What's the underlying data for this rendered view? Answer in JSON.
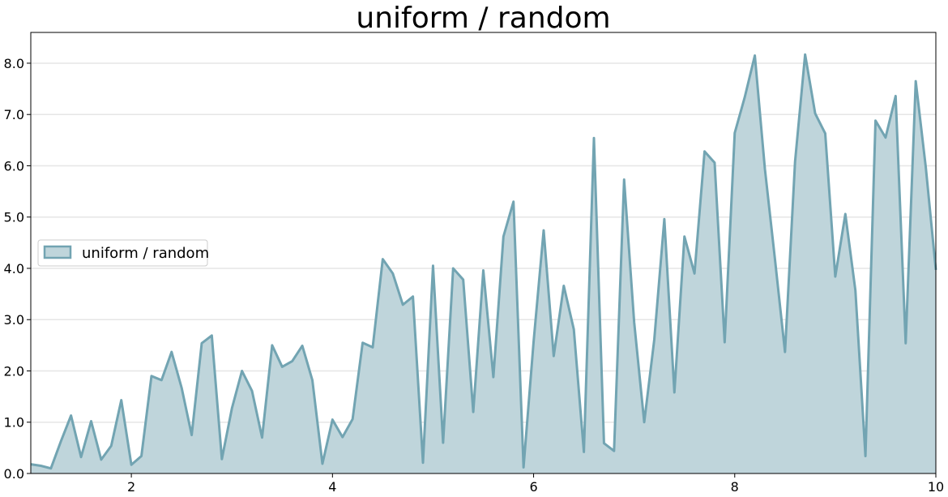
{
  "chart_data": {
    "type": "area",
    "title": "uniform / random",
    "xlabel": "",
    "ylabel": "",
    "xlim": [
      1,
      10
    ],
    "ylim": [
      0,
      8.6
    ],
    "x_ticks": [
      2,
      4,
      6,
      8,
      10
    ],
    "y_ticks": [
      0.0,
      1.0,
      2.0,
      3.0,
      4.0,
      5.0,
      6.0,
      7.0,
      8.0
    ],
    "y_tick_labels": [
      "0.0",
      "1.0",
      "2.0",
      "3.0",
      "4.0",
      "5.0",
      "6.0",
      "7.0",
      "8.0"
    ],
    "grid": "horizontal",
    "legend_position": "center-left",
    "colors": {
      "fill": "#bfd5db",
      "line": "#72a4b2"
    },
    "series": [
      {
        "name": "uniform / random",
        "x": [
          1.0,
          1.1,
          1.2,
          1.3,
          1.4,
          1.5,
          1.6,
          1.7,
          1.8,
          1.9,
          2.0,
          2.1,
          2.2,
          2.3,
          2.4,
          2.5,
          2.6,
          2.7,
          2.8,
          2.9,
          3.0,
          3.1,
          3.2,
          3.3,
          3.4,
          3.5,
          3.6,
          3.7,
          3.8,
          3.9,
          4.0,
          4.1,
          4.2,
          4.3,
          4.4,
          4.5,
          4.6,
          4.7,
          4.8,
          4.9,
          5.0,
          5.1,
          5.2,
          5.3,
          5.4,
          5.5,
          5.6,
          5.7,
          5.8,
          5.9,
          6.0,
          6.1,
          6.2,
          6.3,
          6.4,
          6.5,
          6.6,
          6.7,
          6.8,
          6.9,
          7.0,
          7.1,
          7.2,
          7.3,
          7.4,
          7.5,
          7.6,
          7.7,
          7.8,
          7.9,
          8.0,
          8.1,
          8.2,
          8.3,
          8.4,
          8.5,
          8.6,
          8.7,
          8.8,
          8.9,
          9.0,
          9.1,
          9.2,
          9.3,
          9.4,
          9.5,
          9.6,
          9.7,
          9.8,
          9.9,
          10.0
        ],
        "values": [
          0.18,
          0.15,
          0.1,
          0.63,
          1.13,
          0.32,
          1.02,
          0.27,
          0.54,
          1.43,
          0.17,
          0.34,
          1.9,
          1.82,
          2.37,
          1.67,
          0.75,
          2.54,
          2.69,
          0.28,
          1.27,
          2.0,
          1.61,
          0.7,
          2.5,
          2.08,
          2.19,
          2.49,
          1.82,
          0.19,
          1.05,
          0.71,
          1.06,
          2.55,
          2.46,
          4.18,
          3.9,
          3.29,
          3.45,
          0.21,
          4.05,
          0.6,
          4.0,
          3.78,
          1.2,
          3.96,
          1.88,
          4.62,
          5.3,
          0.12,
          2.57,
          4.74,
          2.29,
          3.66,
          2.81,
          0.42,
          6.54,
          0.59,
          0.44,
          5.73,
          2.95,
          1.0,
          2.61,
          4.96,
          1.58,
          4.62,
          3.9,
          6.28,
          6.06,
          2.56,
          6.64,
          7.34,
          8.15,
          5.94,
          4.18,
          2.37,
          6.08,
          8.17,
          7.02,
          6.63,
          3.84,
          5.06,
          3.57,
          0.34,
          6.88,
          6.55,
          7.36,
          2.54,
          7.65,
          5.97,
          3.97
        ]
      }
    ]
  }
}
